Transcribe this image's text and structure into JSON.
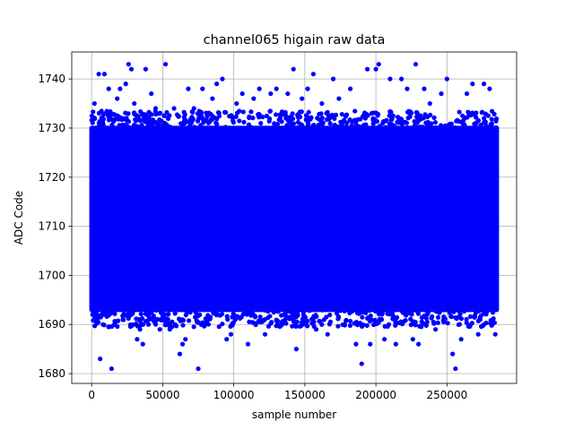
{
  "chart_data": {
    "type": "scatter",
    "title": "channel065 higain raw data",
    "xlabel": "sample number",
    "ylabel": "ADC Code",
    "xlim": [
      -14000,
      299000
    ],
    "ylim": [
      1678,
      1745.5
    ],
    "x_ticks": [
      0,
      50000,
      100000,
      150000,
      200000,
      250000
    ],
    "x_tick_labels": [
      "0",
      "50000",
      "100000",
      "150000",
      "200000",
      "250000"
    ],
    "y_ticks": [
      1680,
      1690,
      1700,
      1710,
      1720,
      1730,
      1740
    ],
    "y_tick_labels": [
      "1680",
      "1690",
      "1700",
      "1710",
      "1720",
      "1730",
      "1740"
    ],
    "grid": true,
    "marker_color": "#0000ff",
    "series": [
      {
        "dense_band": {
          "x_range": [
            0,
            285000
          ],
          "y_range": [
            1693,
            1730
          ]
        },
        "points": [
          [
            2000,
            1735
          ],
          [
            4000,
            1691
          ],
          [
            5000,
            1741
          ],
          [
            6000,
            1683
          ],
          [
            8000,
            1690
          ],
          [
            9000,
            1741
          ],
          [
            10000,
            1733
          ],
          [
            12000,
            1738
          ],
          [
            14000,
            1681
          ],
          [
            16000,
            1690
          ],
          [
            18000,
            1736
          ],
          [
            20000,
            1738
          ],
          [
            22000,
            1691
          ],
          [
            24000,
            1739
          ],
          [
            26000,
            1743
          ],
          [
            28000,
            1742
          ],
          [
            30000,
            1735
          ],
          [
            32000,
            1687
          ],
          [
            34000,
            1689
          ],
          [
            36000,
            1686
          ],
          [
            38000,
            1742
          ],
          [
            40000,
            1690
          ],
          [
            42000,
            1737
          ],
          [
            45000,
            1734
          ],
          [
            48000,
            1689
          ],
          [
            52000,
            1743
          ],
          [
            55000,
            1689
          ],
          [
            58000,
            1734
          ],
          [
            62000,
            1684
          ],
          [
            64000,
            1686
          ],
          [
            66000,
            1687
          ],
          [
            68000,
            1738
          ],
          [
            72000,
            1734
          ],
          [
            75000,
            1681
          ],
          [
            78000,
            1738
          ],
          [
            80000,
            1690
          ],
          [
            85000,
            1736
          ],
          [
            88000,
            1739
          ],
          [
            92000,
            1740
          ],
          [
            95000,
            1687
          ],
          [
            98000,
            1688
          ],
          [
            102000,
            1735
          ],
          [
            106000,
            1737
          ],
          [
            110000,
            1686
          ],
          [
            114000,
            1736
          ],
          [
            118000,
            1738
          ],
          [
            122000,
            1688
          ],
          [
            126000,
            1737
          ],
          [
            130000,
            1738
          ],
          [
            134000,
            1690
          ],
          [
            138000,
            1737
          ],
          [
            142000,
            1742
          ],
          [
            144000,
            1685
          ],
          [
            148000,
            1736
          ],
          [
            152000,
            1738
          ],
          [
            156000,
            1741
          ],
          [
            158000,
            1689
          ],
          [
            162000,
            1735
          ],
          [
            166000,
            1688
          ],
          [
            170000,
            1740
          ],
          [
            174000,
            1736
          ],
          [
            178000,
            1690
          ],
          [
            182000,
            1738
          ],
          [
            186000,
            1686
          ],
          [
            190000,
            1682
          ],
          [
            194000,
            1742
          ],
          [
            196000,
            1686
          ],
          [
            200000,
            1742
          ],
          [
            202000,
            1743
          ],
          [
            206000,
            1687
          ],
          [
            210000,
            1740
          ],
          [
            214000,
            1686
          ],
          [
            218000,
            1740
          ],
          [
            222000,
            1738
          ],
          [
            226000,
            1687
          ],
          [
            228000,
            1743
          ],
          [
            230000,
            1686
          ],
          [
            234000,
            1738
          ],
          [
            238000,
            1735
          ],
          [
            242000,
            1689
          ],
          [
            246000,
            1737
          ],
          [
            250000,
            1740
          ],
          [
            254000,
            1684
          ],
          [
            256000,
            1681
          ],
          [
            260000,
            1687
          ],
          [
            264000,
            1737
          ],
          [
            268000,
            1739
          ],
          [
            272000,
            1688
          ],
          [
            276000,
            1739
          ],
          [
            280000,
            1738
          ],
          [
            284000,
            1688
          ]
        ]
      }
    ]
  }
}
